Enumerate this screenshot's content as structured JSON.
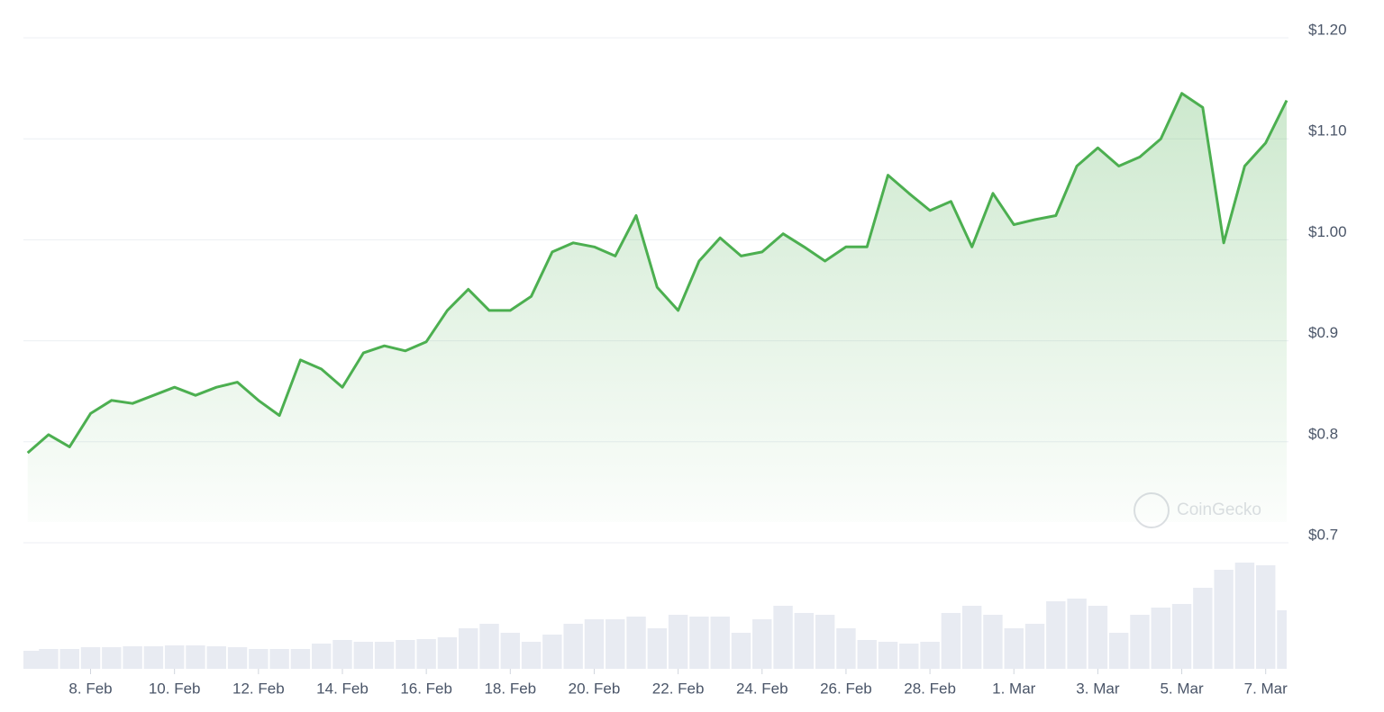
{
  "chart_data": {
    "type": "line",
    "color": "#4caf50",
    "volume_color": "#e8ebf2",
    "watermark": "CoinGecko",
    "grid": true,
    "x": [
      37.5,
      38,
      38.5,
      39,
      39.5,
      40,
      40.5,
      41,
      41.5,
      42,
      42.5,
      43,
      43.5,
      44,
      44.5,
      45,
      45.5,
      46,
      46.5,
      47,
      47.5,
      48,
      48.5,
      49,
      49.5,
      50,
      50.5,
      51,
      51.5,
      52,
      52.5,
      53,
      53.5,
      54,
      54.5,
      55,
      55.5,
      56,
      56.5,
      57,
      57.5,
      58,
      58.5,
      59,
      59.5,
      60,
      60.5,
      61,
      61.5,
      62,
      62.5,
      63,
      63.5,
      64,
      64.5,
      65,
      65.5,
      66,
      66.5,
      67,
      67.5
    ],
    "values": [
      0.789,
      0.807,
      0.795,
      0.828,
      0.841,
      0.838,
      0.846,
      0.854,
      0.846,
      0.854,
      0.859,
      0.841,
      0.826,
      0.881,
      0.872,
      0.854,
      0.888,
      0.895,
      0.89,
      0.899,
      0.93,
      0.951,
      0.93,
      0.93,
      0.944,
      0.988,
      0.997,
      0.993,
      0.984,
      1.024,
      0.953,
      0.93,
      0.979,
      1.002,
      0.984,
      0.988,
      1.006,
      0.993,
      0.979,
      0.993,
      0.993,
      1.064,
      1.046,
      1.029,
      1.038,
      0.993,
      1.046,
      1.015,
      1.02,
      1.024,
      1.073,
      1.091,
      1.073,
      1.082,
      1.1,
      1.145,
      1.131,
      0.997,
      1.073,
      1.096,
      1.138
    ],
    "volume": [
      20,
      22,
      22,
      24,
      24,
      25,
      25,
      26,
      26,
      25,
      24,
      22,
      22,
      22,
      28,
      32,
      30,
      30,
      32,
      33,
      35,
      45,
      50,
      40,
      30,
      38,
      50,
      55,
      55,
      58,
      45,
      60,
      58,
      58,
      40,
      55,
      70,
      62,
      60,
      45,
      32,
      30,
      28,
      30,
      62,
      70,
      60,
      45,
      50,
      75,
      78,
      70,
      40,
      60,
      68,
      72,
      90,
      110,
      118,
      115,
      65
    ],
    "xlim": [
      37.4,
      67.5
    ],
    "ylim": [
      0.7,
      1.2
    ],
    "xticks": [
      {
        "value": 39,
        "label": "8. Feb"
      },
      {
        "value": 41,
        "label": "10. Feb"
      },
      {
        "value": 43,
        "label": "12. Feb"
      },
      {
        "value": 45,
        "label": "14. Feb"
      },
      {
        "value": 47,
        "label": "16. Feb"
      },
      {
        "value": 49,
        "label": "18. Feb"
      },
      {
        "value": 51,
        "label": "20. Feb"
      },
      {
        "value": 53,
        "label": "22. Feb"
      },
      {
        "value": 55,
        "label": "24. Feb"
      },
      {
        "value": 57,
        "label": "26. Feb"
      },
      {
        "value": 59,
        "label": "28. Feb"
      },
      {
        "value": 61,
        "label": "1. Mar"
      },
      {
        "value": 63,
        "label": "3. Mar"
      },
      {
        "value": 65,
        "label": "5. Mar"
      },
      {
        "value": 67,
        "label": "7. Mar"
      }
    ],
    "yticks": [
      {
        "value": 0.7,
        "label": "$0.7"
      },
      {
        "value": 0.8,
        "label": "$0.8"
      },
      {
        "value": 0.9,
        "label": "$0.9"
      },
      {
        "value": 1.0,
        "label": "$1.00"
      },
      {
        "value": 1.1,
        "label": "$1.10"
      },
      {
        "value": 1.2,
        "label": "$1.20"
      }
    ]
  }
}
